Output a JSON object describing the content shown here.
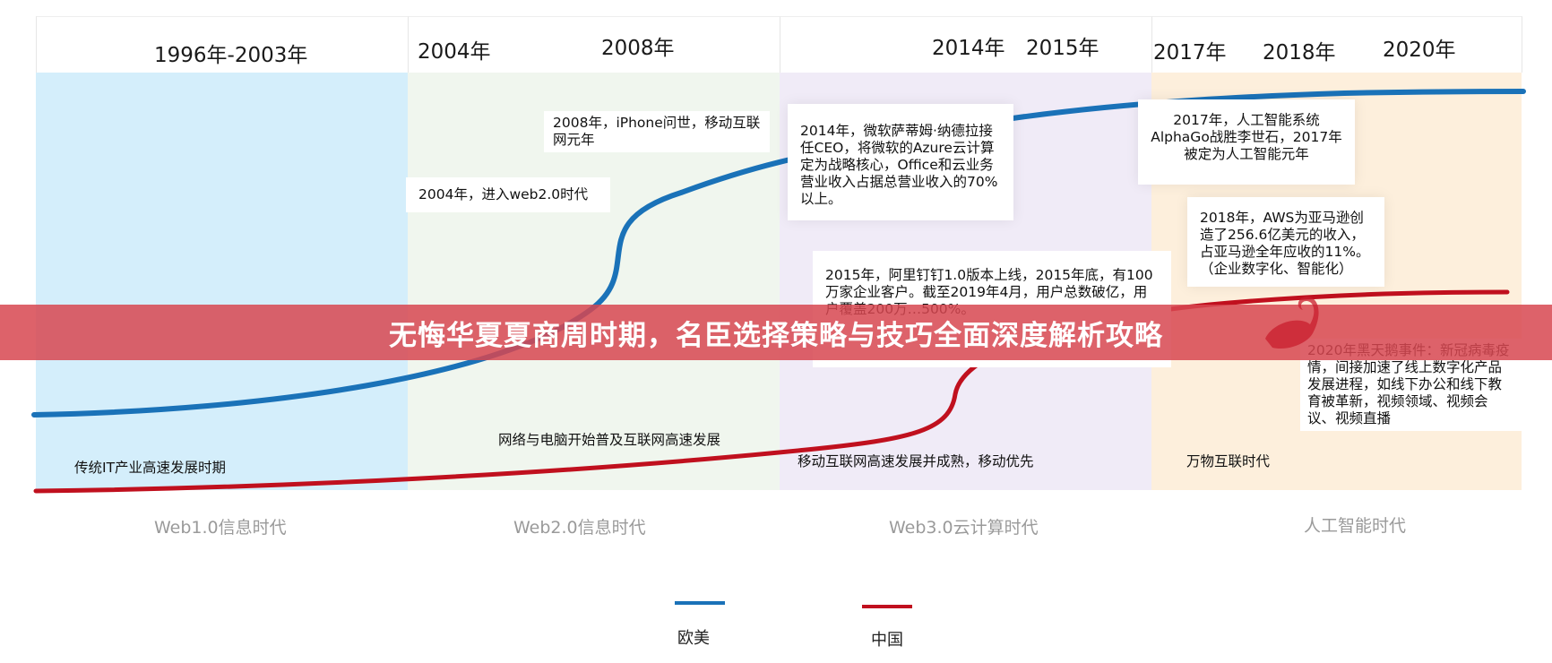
{
  "timeline": {
    "periods": [
      {
        "years": [
          "1996年-2003年"
        ],
        "era": "Web1.0信息时代",
        "color": "#d4eefb",
        "description": "传统IT产业高速发展时期"
      },
      {
        "years": [
          "2004年",
          "2008年"
        ],
        "era": "Web2.0信息时代",
        "color": "#f0f6ee",
        "description": "网络与电脑开始普及互联网高速发展"
      },
      {
        "years": [
          "2014年",
          "2015年"
        ],
        "era": "Web3.0云计算时代",
        "color": "#f0ebf7",
        "description": "移动互联网高速发展并成熟，移动优先"
      },
      {
        "years": [
          "2017年",
          "2018年",
          "2020年"
        ],
        "era": "人工智能时代",
        "color": "#fdefdc",
        "description": "万物互联时代"
      }
    ],
    "notes": [
      {
        "text": "2008年，iPhone问世，移动互联网元年"
      },
      {
        "text": "2004年，进入web2.0时代"
      },
      {
        "text": "2014年，微软萨蒂姆·纳德拉接任CEO，将微软的Azure云计算定为战略核心，Office和云业务营业收入占据总营业收入的70%以上。"
      },
      {
        "text": "2015年，阿里钉钉1.0版本上线，2015年底，有100万家企业客户。截至2019年4月，用户总数破亿，用户覆盖200万…500%。"
      },
      {
        "text": "2017年，人工智能系统AlphaGo战胜李世石，2017年被定为人工智能元年"
      },
      {
        "text": "2018年，AWS为亚马逊创造了256.6亿美元的收入，占亚马逊全年应收的11%。（企业数字化、智能化）"
      },
      {
        "text": "2020年黑天鹅事件：新冠病毒疫情，间接加速了线上数字化产品发展进程，如线下办公和线下教育被革新，视频领域、视频会议、视频直播"
      }
    ],
    "series": [
      {
        "name": "欧美",
        "color": "#1a72b8"
      },
      {
        "name": "中国",
        "color": "#c0101e"
      }
    ],
    "watermark_icon": "swan-icon"
  },
  "banner": {
    "title": "无悔华夏夏商周时期，名臣选择策略与技巧全面深度解析攻略"
  }
}
